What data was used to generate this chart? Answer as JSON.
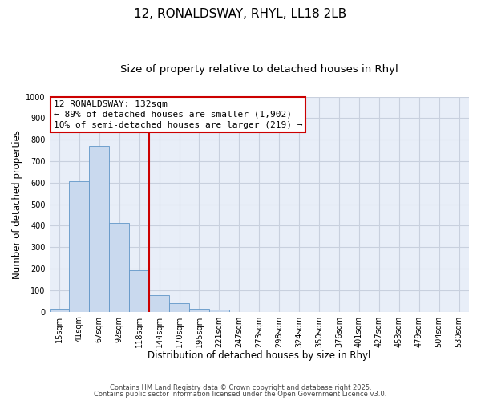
{
  "title": "12, RONALDSWAY, RHYL, LL18 2LB",
  "subtitle": "Size of property relative to detached houses in Rhyl",
  "xlabel": "Distribution of detached houses by size in Rhyl",
  "ylabel": "Number of detached properties",
  "bar_labels": [
    "15sqm",
    "41sqm",
    "67sqm",
    "92sqm",
    "118sqm",
    "144sqm",
    "170sqm",
    "195sqm",
    "221sqm",
    "247sqm",
    "273sqm",
    "298sqm",
    "324sqm",
    "350sqm",
    "376sqm",
    "401sqm",
    "427sqm",
    "453sqm",
    "479sqm",
    "504sqm",
    "530sqm"
  ],
  "bar_values": [
    15,
    608,
    770,
    413,
    193,
    78,
    40,
    15,
    10,
    0,
    0,
    0,
    0,
    0,
    0,
    0,
    0,
    0,
    0,
    0,
    0
  ],
  "bar_color": "#c9d9ee",
  "bar_edge_color": "#6096c8",
  "vline_color": "#cc0000",
  "annotation_text": "12 RONALDSWAY: 132sqm\n← 89% of detached houses are smaller (1,902)\n10% of semi-detached houses are larger (219) →",
  "annotation_box_color": "#ffffff",
  "annotation_box_edge": "#cc0000",
  "ylim": [
    0,
    1000
  ],
  "yticks": [
    0,
    100,
    200,
    300,
    400,
    500,
    600,
    700,
    800,
    900,
    1000
  ],
  "grid_color": "#c8d0de",
  "background_color": "#ffffff",
  "footer_line1": "Contains HM Land Registry data © Crown copyright and database right 2025.",
  "footer_line2": "Contains public sector information licensed under the Open Government Licence v3.0.",
  "title_fontsize": 11,
  "subtitle_fontsize": 9.5,
  "label_fontsize": 8.5,
  "tick_fontsize": 7,
  "annotation_fontsize": 8,
  "footer_fontsize": 6
}
